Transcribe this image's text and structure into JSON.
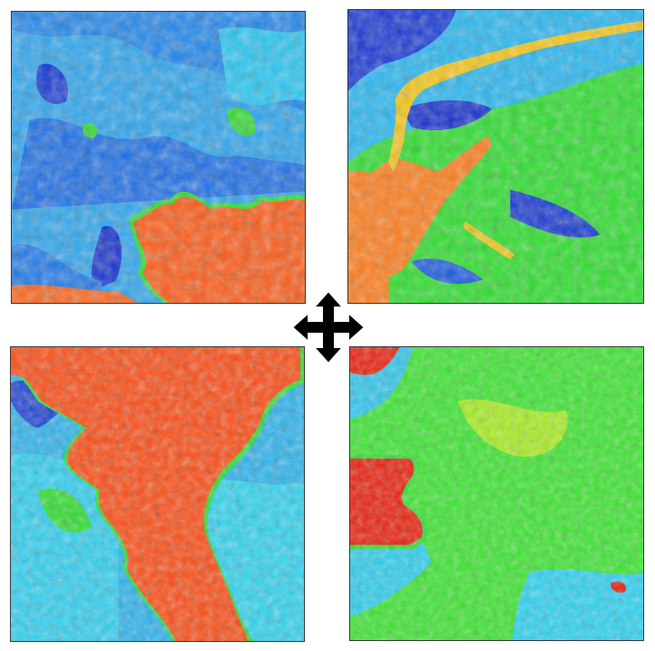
{
  "panels": [
    {
      "id": "top-left",
      "dominant": "blue-cyan",
      "water_color": "#ff5a14"
    },
    {
      "id": "top-right",
      "dominant": "blue-green",
      "water_color": "#ff7a1a"
    },
    {
      "id": "bottom-left",
      "dominant": "cyan-blue",
      "water_color": "#ff4a0e"
    },
    {
      "id": "bottom-right",
      "dominant": "green",
      "water_color": "#f0200c"
    }
  ],
  "palette": {
    "deep_blue": "#1428d2",
    "blue": "#1e78f0",
    "cyan": "#18d8f8",
    "green": "#28e628",
    "yellow": "#e6f01e",
    "orange": "#ff6a14",
    "red": "#e61a0a"
  },
  "cursor": {
    "icon": "move-cursor-icon"
  }
}
